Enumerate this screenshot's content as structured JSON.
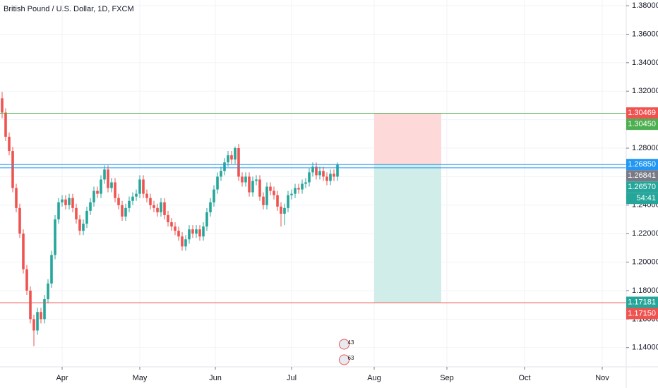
{
  "chart_data": {
    "type": "candlestick",
    "title": "British Pound / U.S. Dollar, 1D, FXCM",
    "x": [
      0,
      1,
      2,
      3,
      4,
      5,
      6,
      7,
      8,
      9,
      10,
      11,
      12,
      13,
      14,
      15,
      16,
      17,
      18,
      19,
      20,
      21,
      22,
      23,
      24,
      25,
      26,
      27,
      28,
      29,
      30,
      31,
      32,
      33,
      34,
      35,
      36,
      37,
      38,
      39,
      40,
      41,
      42,
      43,
      44,
      45,
      46,
      47,
      48,
      49,
      50,
      51,
      52,
      53,
      54,
      55,
      56,
      57,
      58,
      59,
      60,
      61,
      62,
      63,
      64,
      65,
      66,
      67,
      68,
      69,
      70,
      71,
      72,
      73,
      74,
      75,
      76,
      77,
      78,
      79,
      80,
      81,
      82,
      83,
      84,
      85,
      86,
      87,
      88,
      89,
      90,
      91,
      92,
      93,
      94,
      95
    ],
    "open": [
      1.315,
      1.305,
      1.288,
      1.278,
      1.252,
      1.238,
      1.22,
      1.195,
      1.18,
      1.16,
      1.152,
      1.165,
      1.16,
      1.174,
      1.185,
      1.205,
      1.23,
      1.242,
      1.244,
      1.24,
      1.245,
      1.238,
      1.23,
      1.222,
      1.227,
      1.236,
      1.242,
      1.25,
      1.248,
      1.258,
      1.265,
      1.252,
      1.256,
      1.245,
      1.24,
      1.232,
      1.238,
      1.243,
      1.246,
      1.248,
      1.258,
      1.248,
      1.245,
      1.24,
      1.238,
      1.235,
      1.242,
      1.233,
      1.228,
      1.225,
      1.222,
      1.218,
      1.211,
      1.216,
      1.223,
      1.22,
      1.223,
      1.218,
      1.225,
      1.235,
      1.242,
      1.251,
      1.26,
      1.264,
      1.27,
      1.275,
      1.272,
      1.28,
      1.26,
      1.256,
      1.26,
      1.249,
      1.257,
      1.258,
      1.246,
      1.24,
      1.253,
      1.25,
      1.247,
      1.239,
      1.234,
      1.238,
      1.247,
      1.248,
      1.252,
      1.251,
      1.255,
      1.256,
      1.263,
      1.267,
      1.261,
      1.264,
      1.26,
      1.257,
      1.262,
      1.26
    ],
    "high": [
      1.3195,
      1.308,
      1.291,
      1.281,
      1.255,
      1.241,
      1.223,
      1.198,
      1.183,
      1.163,
      1.168,
      1.168,
      1.177,
      1.188,
      1.208,
      1.233,
      1.245,
      1.247,
      1.247,
      1.248,
      1.248,
      1.241,
      1.233,
      1.23,
      1.239,
      1.245,
      1.253,
      1.253,
      1.261,
      1.268,
      1.268,
      1.259,
      1.259,
      1.248,
      1.243,
      1.241,
      1.246,
      1.249,
      1.251,
      1.261,
      1.261,
      1.251,
      1.248,
      1.243,
      1.241,
      1.245,
      1.245,
      1.236,
      1.231,
      1.228,
      1.225,
      1.221,
      1.219,
      1.226,
      1.226,
      1.226,
      1.226,
      1.228,
      1.238,
      1.245,
      1.254,
      1.263,
      1.267,
      1.273,
      1.278,
      1.278,
      1.2812,
      1.283,
      1.263,
      1.263,
      1.263,
      1.26,
      1.261,
      1.261,
      1.249,
      1.256,
      1.256,
      1.253,
      1.25,
      1.242,
      1.241,
      1.25,
      1.251,
      1.255,
      1.255,
      1.258,
      1.259,
      1.266,
      1.27,
      1.27,
      1.267,
      1.267,
      1.263,
      1.265,
      1.265,
      1.27
    ],
    "low": [
      1.301,
      1.285,
      1.275,
      1.249,
      1.235,
      1.217,
      1.192,
      1.177,
      1.157,
      1.141,
      1.149,
      1.157,
      1.157,
      1.171,
      1.182,
      1.202,
      1.227,
      1.239,
      1.237,
      1.237,
      1.235,
      1.227,
      1.219,
      1.219,
      1.224,
      1.233,
      1.239,
      1.245,
      1.245,
      1.255,
      1.249,
      1.249,
      1.242,
      1.237,
      1.229,
      1.229,
      1.235,
      1.24,
      1.243,
      1.245,
      1.245,
      1.242,
      1.237,
      1.235,
      1.232,
      1.232,
      1.23,
      1.225,
      1.222,
      1.219,
      1.215,
      1.208,
      1.208,
      1.213,
      1.217,
      1.217,
      1.215,
      1.215,
      1.222,
      1.232,
      1.239,
      1.248,
      1.257,
      1.261,
      1.267,
      1.269,
      1.269,
      1.257,
      1.253,
      1.253,
      1.246,
      1.246,
      1.254,
      1.243,
      1.237,
      1.237,
      1.247,
      1.244,
      1.236,
      1.225,
      1.226,
      1.235,
      1.244,
      1.245,
      1.248,
      1.248,
      1.252,
      1.253,
      1.26,
      1.258,
      1.258,
      1.257,
      1.254,
      1.254,
      1.257,
      1.257
    ],
    "close": [
      1.305,
      1.288,
      1.278,
      1.252,
      1.238,
      1.22,
      1.195,
      1.18,
      1.16,
      1.152,
      1.165,
      1.16,
      1.174,
      1.185,
      1.205,
      1.23,
      1.242,
      1.244,
      1.24,
      1.245,
      1.238,
      1.23,
      1.222,
      1.227,
      1.236,
      1.242,
      1.25,
      1.248,
      1.258,
      1.265,
      1.252,
      1.256,
      1.245,
      1.24,
      1.232,
      1.238,
      1.243,
      1.246,
      1.248,
      1.258,
      1.248,
      1.245,
      1.24,
      1.238,
      1.235,
      1.242,
      1.233,
      1.228,
      1.225,
      1.222,
      1.218,
      1.211,
      1.216,
      1.223,
      1.22,
      1.223,
      1.218,
      1.225,
      1.235,
      1.242,
      1.251,
      1.26,
      1.264,
      1.27,
      1.275,
      1.272,
      1.28,
      1.26,
      1.256,
      1.26,
      1.249,
      1.257,
      1.258,
      1.246,
      1.24,
      1.253,
      1.25,
      1.247,
      1.239,
      1.234,
      1.238,
      1.247,
      1.248,
      1.252,
      1.251,
      1.255,
      1.256,
      1.263,
      1.267,
      1.261,
      1.264,
      1.26,
      1.257,
      1.262,
      1.26,
      1.2684
    ],
    "up_color": "#26a69a",
    "down_color": "#ef5350",
    "ylim": [
      1.1265,
      1.384
    ],
    "yticks": [
      {
        "value": 1.14,
        "label": "1.14000"
      },
      {
        "value": 1.16,
        "label": "1.16000"
      },
      {
        "value": 1.18,
        "label": "1.18000"
      },
      {
        "value": 1.2,
        "label": "1.20000"
      },
      {
        "value": 1.22,
        "label": "1.22000"
      },
      {
        "value": 1.24,
        "label": "1.24000"
      },
      {
        "value": 1.26,
        "label": "1.26000"
      },
      {
        "value": 1.28,
        "label": "1.28000"
      },
      {
        "value": 1.3,
        "label": "1.30000"
      },
      {
        "value": 1.32,
        "label": "1.32000"
      },
      {
        "value": 1.34,
        "label": "1.34000"
      },
      {
        "value": 1.36,
        "label": "1.36000"
      },
      {
        "value": 1.38,
        "label": "1.38000"
      }
    ],
    "xlim": [
      -0.6,
      176.8
    ],
    "xticks": [
      {
        "value": 17,
        "label": "Apr"
      },
      {
        "value": 39,
        "label": "May"
      },
      {
        "value": 60.4,
        "label": "Jun"
      },
      {
        "value": 82,
        "label": "Jul"
      },
      {
        "value": 105.4,
        "label": "Aug"
      },
      {
        "value": 126,
        "label": "Sep"
      },
      {
        "value": 148,
        "label": "Oct"
      },
      {
        "value": 170,
        "label": "Nov"
      }
    ],
    "grid": true,
    "price_lines": [
      {
        "value": 1.3045,
        "color": "#4caf50"
      },
      {
        "value": 1.2685,
        "color": "#2196f3"
      },
      {
        "value": 1.2662,
        "color": "#2196f3"
      },
      {
        "value": 1.1715,
        "color": "#ef5350"
      }
    ],
    "position": {
      "entry": 1.2685,
      "stop": 1.3045,
      "target": 1.1715,
      "start": 105.4,
      "end": 124.4,
      "stop_color": "#fdd9d9",
      "target_color": "#d0ede9"
    },
    "price_labels": [
      {
        "value": 1.30469,
        "label": "1.30469",
        "color": "#ef5350"
      },
      {
        "value": 1.3045,
        "label": "1.30450",
        "color": "#4caf50"
      },
      {
        "value": 1.2685,
        "label": "1.26850",
        "color": "#2196f3"
      },
      {
        "value": 1.26841,
        "label": "1.26841",
        "color": "#787b86"
      },
      {
        "value": 1.2657,
        "label": "1.26570",
        "color": "#26a69a"
      },
      {
        "value": 1.2657,
        "label": "54:41",
        "color": "#26a69a"
      },
      {
        "value": 1.17181,
        "label": "1.17181",
        "color": "#26a69a"
      },
      {
        "value": 1.1715,
        "label": "1.17150",
        "color": "#ef5350"
      }
    ],
    "events": [
      {
        "x": 97.5,
        "label": "43"
      },
      {
        "x": 97.5,
        "label": "63"
      }
    ]
  }
}
